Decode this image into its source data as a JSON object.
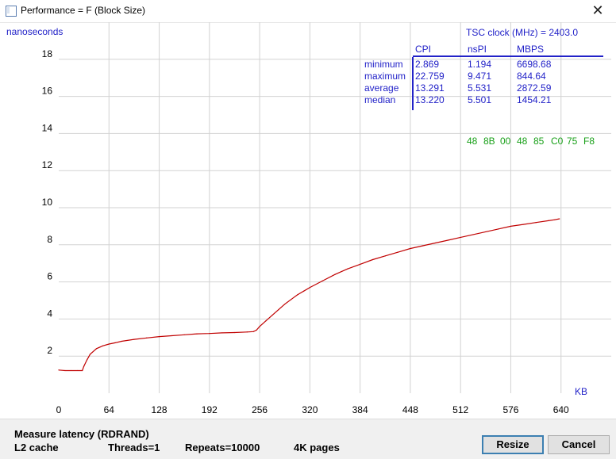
{
  "window": {
    "title": "Performance = F (Block Size)",
    "close_glyph": "✕",
    "icon": "app-window-icon"
  },
  "chart_data": {
    "type": "line",
    "ylabel": "nanoseconds",
    "xlabel": "KB",
    "xlim": [
      0,
      704
    ],
    "ylim": [
      0,
      20
    ],
    "xticks": [
      0,
      64,
      128,
      192,
      256,
      320,
      384,
      448,
      512,
      576,
      640
    ],
    "yticks": [
      2,
      4,
      6,
      8,
      10,
      12,
      14,
      16,
      18
    ],
    "grid": true,
    "line_color": "#c00000",
    "series": [
      {
        "x": [
          0,
          8,
          16,
          24,
          30,
          32,
          36,
          40,
          48,
          56,
          64,
          72,
          80,
          96,
          112,
          128,
          144,
          160,
          176,
          192,
          208,
          224,
          240,
          248,
          252,
          256,
          264,
          272,
          280,
          288,
          296,
          304,
          312,
          320,
          336,
          352,
          368,
          384,
          400,
          416,
          432,
          448,
          464,
          480,
          496,
          512,
          528,
          544,
          560,
          576,
          592,
          608,
          624,
          632,
          638
        ],
        "y": [
          1.25,
          1.22,
          1.22,
          1.22,
          1.22,
          1.45,
          1.8,
          2.1,
          2.4,
          2.55,
          2.65,
          2.72,
          2.8,
          2.9,
          2.98,
          3.05,
          3.1,
          3.15,
          3.2,
          3.22,
          3.25,
          3.27,
          3.3,
          3.32,
          3.4,
          3.6,
          3.9,
          4.2,
          4.5,
          4.8,
          5.05,
          5.3,
          5.5,
          5.7,
          6.05,
          6.4,
          6.7,
          6.95,
          7.2,
          7.4,
          7.6,
          7.8,
          7.95,
          8.1,
          8.25,
          8.4,
          8.55,
          8.7,
          8.85,
          9.0,
          9.1,
          9.2,
          9.3,
          9.35,
          9.4
        ]
      }
    ]
  },
  "stats": {
    "tsc_label": "TSC clock (MHz)  = 2403.0",
    "headers": [
      "CPI",
      "nsPI",
      "MBPS"
    ],
    "rows": [
      {
        "label": "minimum",
        "cpi": "2.869",
        "nspi": "1.194",
        "mbps": "6698.68"
      },
      {
        "label": "maximum",
        "cpi": "22.759",
        "nspi": "9.471",
        "mbps": "844.64"
      },
      {
        "label": "average",
        "cpi": "13.291",
        "nspi": "5.531",
        "mbps": "2872.59"
      },
      {
        "label": "median",
        "cpi": "13.220",
        "nspi": "5.501",
        "mbps": "1454.21"
      }
    ],
    "hex_bytes": [
      "48",
      "8B",
      "00",
      "48",
      "85",
      "C0",
      "75",
      "F8"
    ],
    "text_color": "#2222c8",
    "hex_color": "#18a018"
  },
  "footer": {
    "measure": "Measure latency (RDRAND)",
    "cache": "L2 cache",
    "threads": "Threads=1",
    "repeats": "Repeats=10000",
    "pages": "4K pages",
    "resize_label": "Resize",
    "cancel_label": "Cancel"
  }
}
